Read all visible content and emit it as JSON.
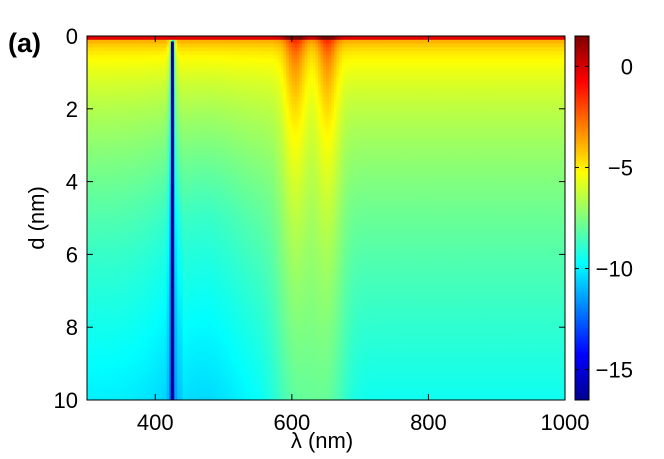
{
  "panel_label": "(a)",
  "chart_data": {
    "type": "heatmap",
    "title": "",
    "xlabel": "λ (nm)",
    "ylabel": "d (nm)",
    "x_range": [
      300,
      1000
    ],
    "y_range": [
      0,
      10
    ],
    "y_reversed": true,
    "x_ticks": [
      400,
      600,
      800,
      1000
    ],
    "y_ticks": [
      0,
      2,
      4,
      6,
      8,
      10
    ],
    "colorbar": {
      "range": [
        -16.5,
        1.5
      ],
      "ticks": [
        0,
        -5,
        -10,
        -15
      ],
      "colormap": "jet"
    },
    "features": [
      {
        "type": "sharp_minimum",
        "x": 425,
        "value_min": -16.5
      },
      {
        "type": "band",
        "x": 605,
        "width": 15,
        "y_extent": 2.4
      },
      {
        "type": "band",
        "x": 652,
        "width": 14,
        "y_extent": 2.4
      }
    ],
    "grid": false,
    "legend": "colorbar-right"
  }
}
